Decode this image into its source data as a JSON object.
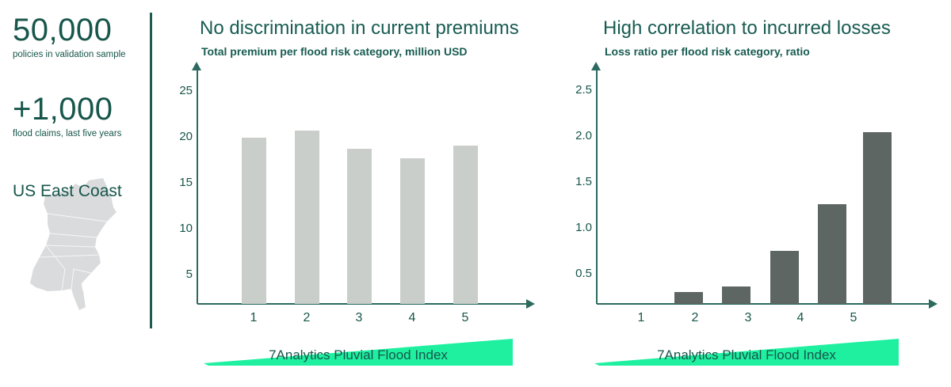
{
  "colors": {
    "teal_text": "#17564b",
    "axis": "#2c6a5f",
    "bar_light": "#c9cecb",
    "bar_dark": "#5d6662",
    "accent_green": "#1ef0a0",
    "map_gray": "#dadbdc"
  },
  "sidebar": {
    "stats": [
      {
        "value": "50,000",
        "label": "policies in validation sample"
      },
      {
        "value": "+1,000",
        "label": "flood claims, last five years"
      }
    ],
    "region_label": "US East Coast"
  },
  "chart_data": [
    {
      "type": "bar",
      "title": "No discrimination in current premiums",
      "subtitle": "Total premium per flood risk category, million USD",
      "xlabel": "7Analytics Pluvial Flood Index",
      "categories": [
        "1",
        "2",
        "3",
        "4",
        "5"
      ],
      "values": [
        19.9,
        20.7,
        18.7,
        17.7,
        19.1
      ],
      "ytick_values": [
        5,
        10,
        15,
        20,
        25
      ],
      "ytick_labels": [
        "5",
        "10",
        "15",
        "20",
        "25"
      ],
      "ylim": [
        0,
        27
      ],
      "grid": false,
      "legend": false,
      "bar_color": "#c9cecb"
    },
    {
      "type": "bar",
      "title": "High correlation to incurred losses",
      "subtitle": "Loss ratio per flood risk category, ratio",
      "xlabel": "7Analytics Pluvial Flood Index",
      "categories": [
        "1",
        "2",
        "3",
        "4",
        "5"
      ],
      "values": [
        0.3,
        0.36,
        0.75,
        1.26,
        2.04
      ],
      "ytick_values": [
        0.5,
        1.0,
        1.5,
        2.0,
        2.5
      ],
      "ytick_labels": [
        "0.5",
        "1.0",
        "1.5",
        "2.0",
        "2.5"
      ],
      "ylim": [
        0,
        2.7
      ],
      "grid": false,
      "legend": false,
      "bar_color": "#5d6662",
      "bars_shifted_right": true
    }
  ]
}
